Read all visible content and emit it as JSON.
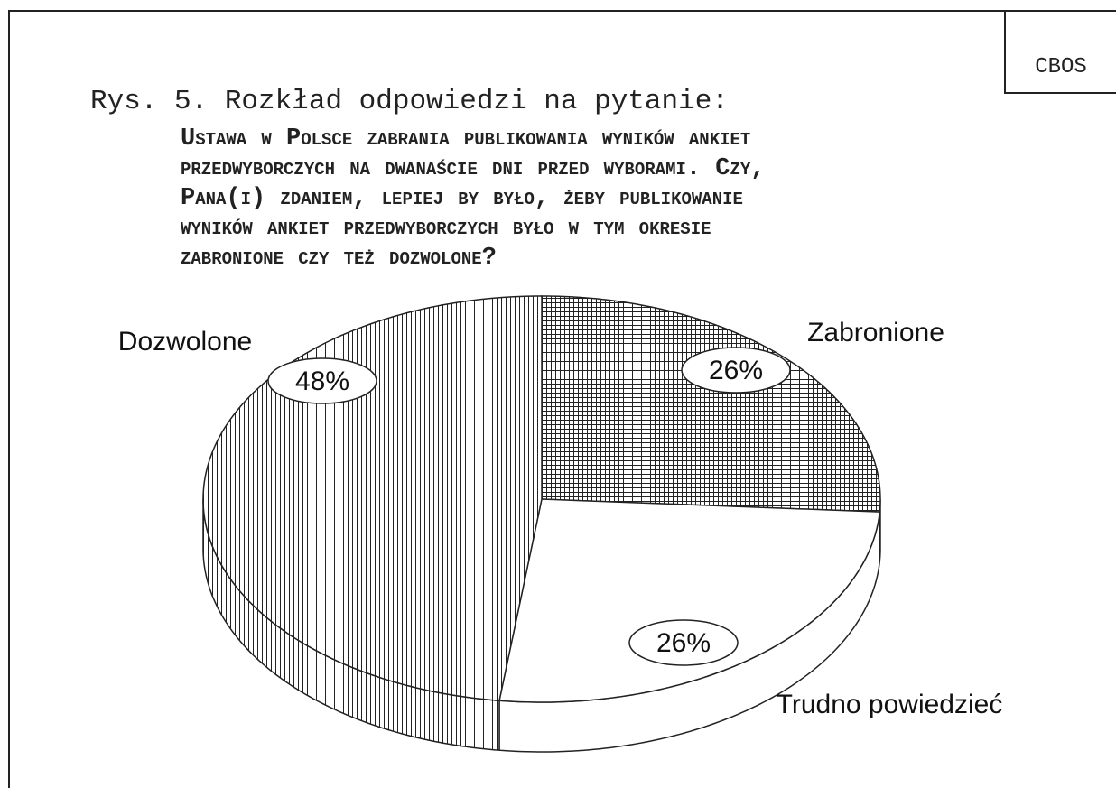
{
  "chart_data": {
    "type": "pie",
    "corner_label": "CBOS",
    "title": "Rys. 5. Rozkład odpowiedzi na pytanie:",
    "subtitle_lines": [
      "Ustawa w Polsce zabrania publikowania wyników ankiet",
      "przedwyborczych na dwanaście dni przed wyborami. Czy,",
      "Pana(i) zdaniem, lepiej by było, żeby publikowanie",
      "wyników ankiet przedwyborczych było w tym okresie",
      "zabronione czy też dozwolone?"
    ],
    "categories": [
      "Zabronione",
      "Trudno powiedzieć",
      "Dozwolone"
    ],
    "values": [
      26,
      26,
      48
    ],
    "value_labels": [
      "26%",
      "26%",
      "48%"
    ]
  }
}
